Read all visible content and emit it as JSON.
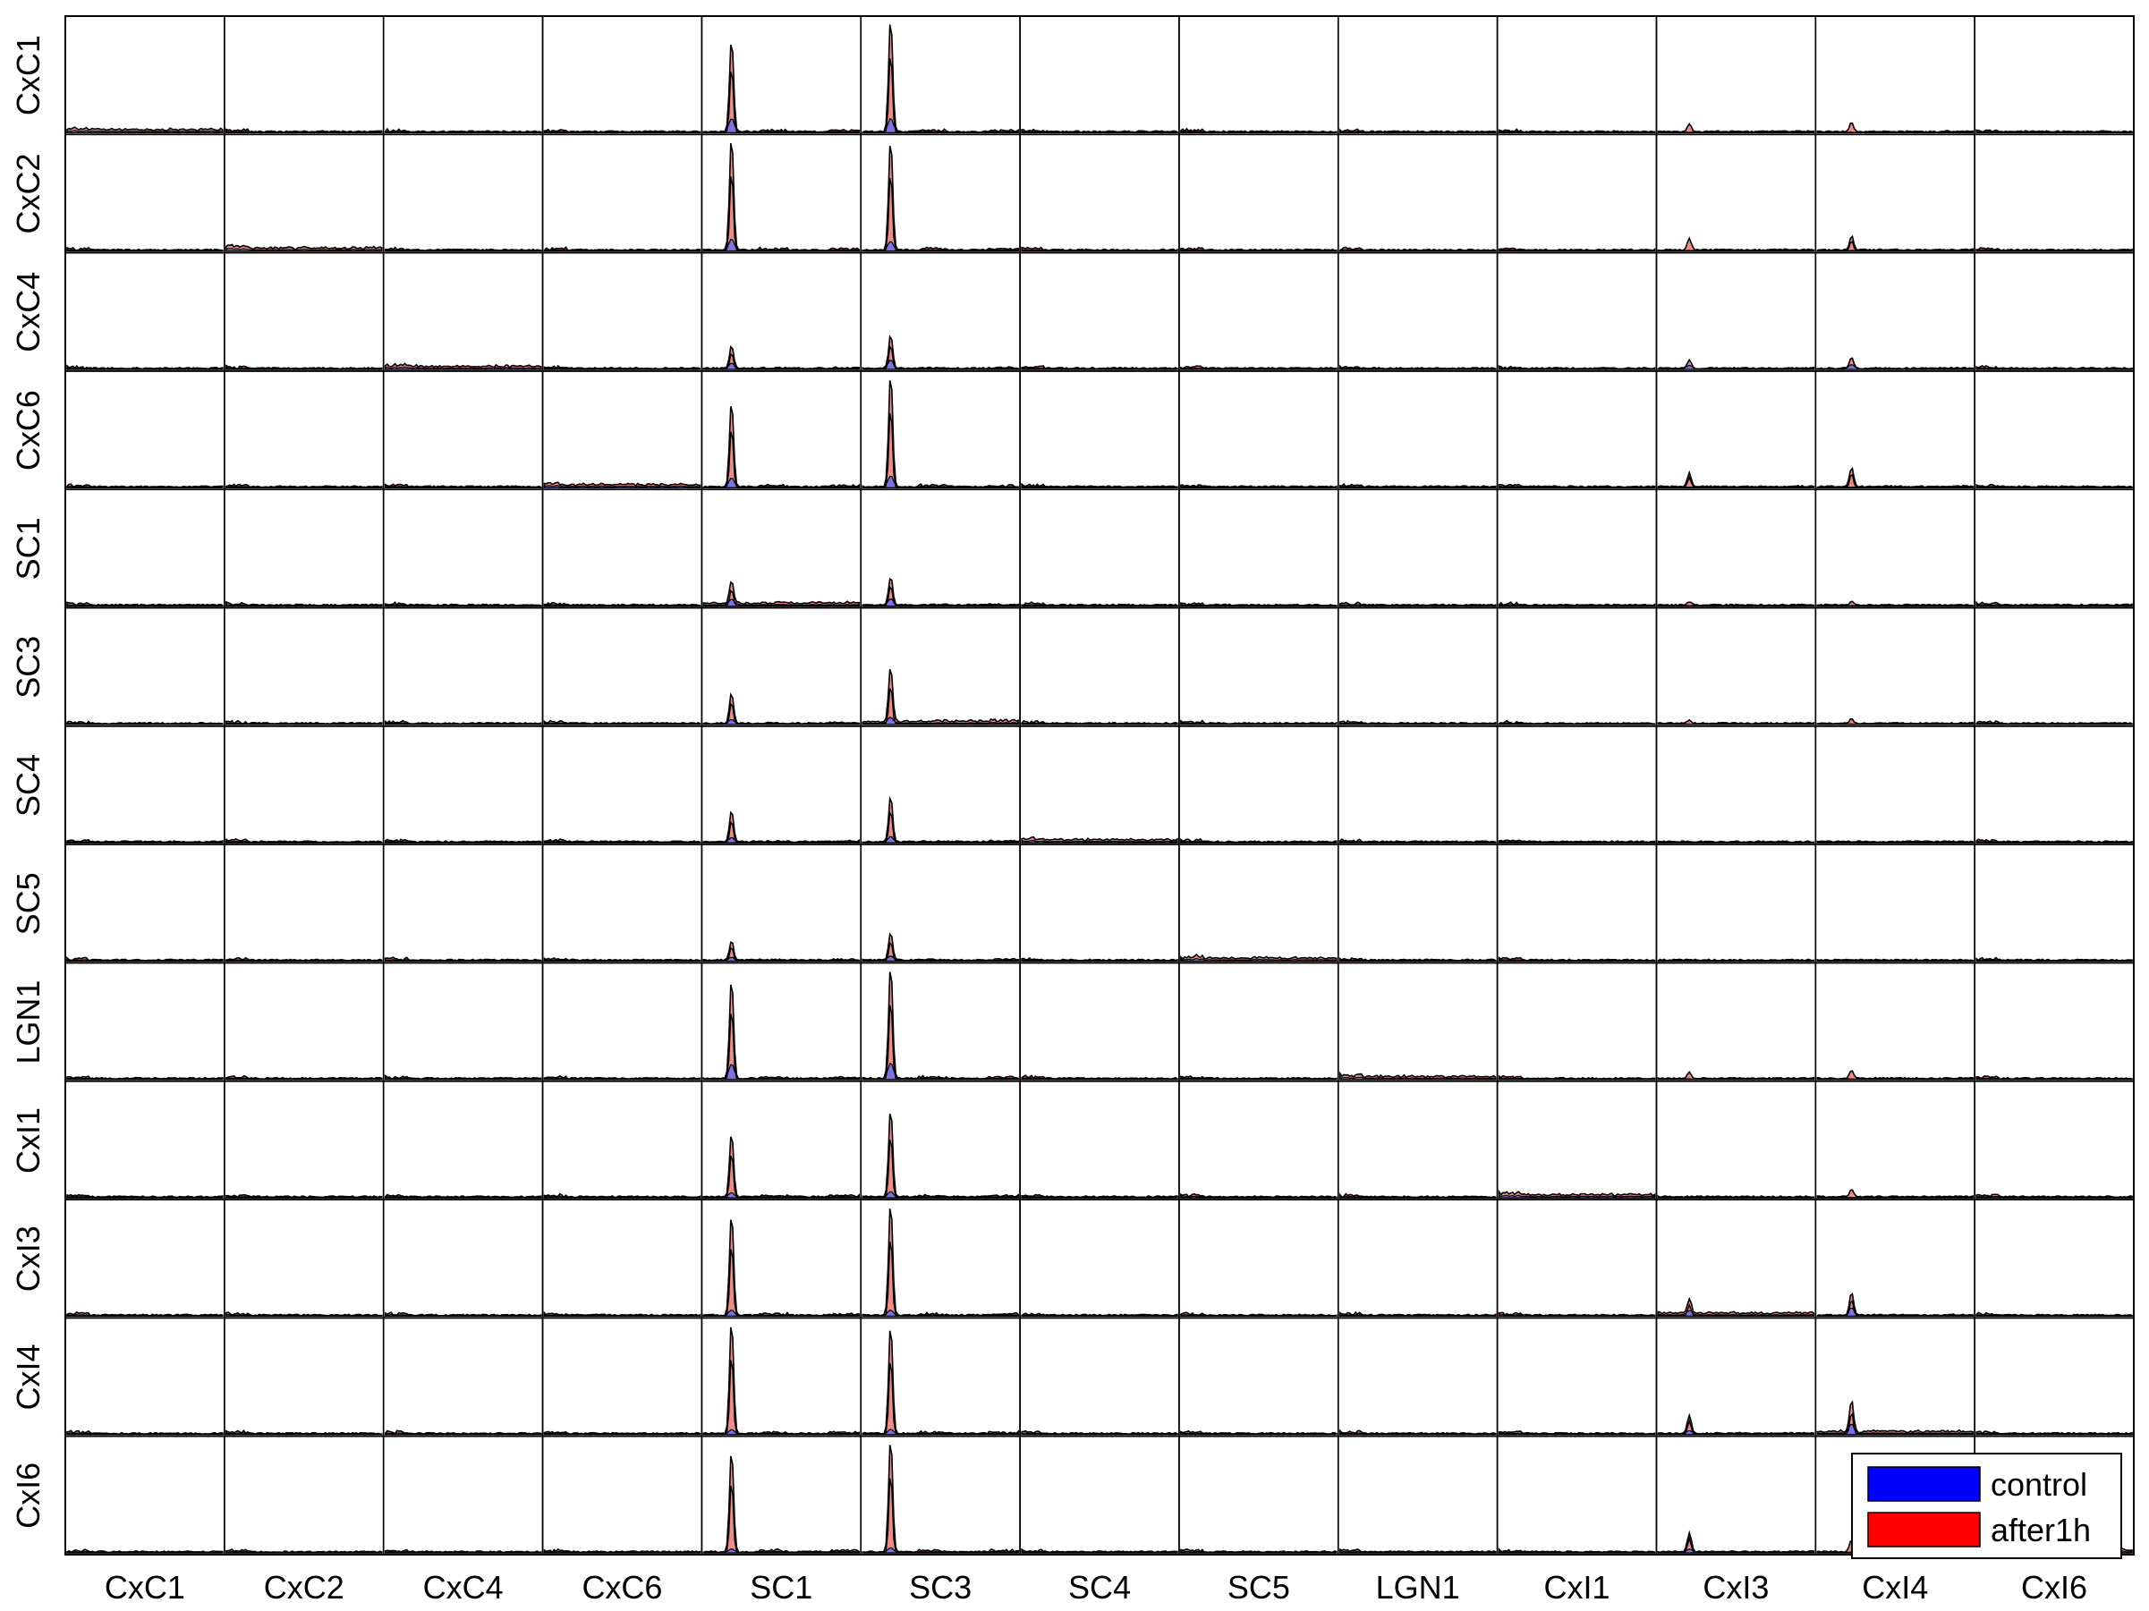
{
  "chart_data": {
    "type": "area",
    "layout": "small-multiples grid",
    "rows": [
      "CxC1",
      "CxC2",
      "CxC4",
      "CxC6",
      "SC1",
      "SC3",
      "SC4",
      "SC5",
      "LGN1",
      "CxI1",
      "CxI3",
      "CxI4",
      "CxI6"
    ],
    "cols": [
      "CxC1",
      "CxC2",
      "CxC4",
      "CxC6",
      "SC1",
      "SC3",
      "SC4",
      "SC5",
      "LGN1",
      "CxI1",
      "CxI3",
      "CxI4",
      "CxI6"
    ],
    "xlim": [
      0,
      1
    ],
    "ylim": [
      0,
      1
    ],
    "grid": false,
    "legend": {
      "position": "bottom-right",
      "entries": [
        {
          "label": "control",
          "color": "#0000ff"
        },
        {
          "label": "after1h",
          "color": "#ff0000"
        }
      ]
    },
    "series": [
      {
        "name": "control",
        "fill": "#6f6fee",
        "line": "#000000"
      },
      {
        "name": "after1h",
        "fill": "#f08a84",
        "line": "#000000"
      }
    ],
    "peak_position": {
      "SC1": 0.18,
      "SC3": 0.18,
      "CxI3": 0.2,
      "CxI4": 0.22
    },
    "peaks": {
      "CxC1": {
        "SC1": [
          0.82,
          0.12
        ],
        "SC3": [
          1.0,
          0.12
        ],
        "CxI3": [
          0.07,
          0.0
        ],
        "CxI4": [
          0.08,
          0.0
        ]
      },
      "CxC2": {
        "SC1": [
          1.0,
          0.1
        ],
        "SC3": [
          0.98,
          0.08
        ],
        "CxI3": [
          0.1,
          0.0
        ],
        "CxI4": [
          0.12,
          0.0
        ]
      },
      "CxC4": {
        "SC1": [
          0.2,
          0.05
        ],
        "SC3": [
          0.3,
          0.08
        ],
        "CxI3": [
          0.07,
          0.03
        ],
        "CxI4": [
          0.1,
          0.04
        ]
      },
      "CxC6": {
        "SC1": [
          0.75,
          0.08
        ],
        "SC3": [
          1.0,
          0.1
        ],
        "CxI3": [
          0.12,
          0.0
        ],
        "CxI4": [
          0.17,
          0.0
        ]
      },
      "SC1": {
        "SC1": [
          0.2,
          0.05
        ],
        "SC3": [
          0.25,
          0.06
        ],
        "CxI3": [
          0.03,
          0.0
        ],
        "CxI4": [
          0.03,
          0.0
        ]
      },
      "SC3": {
        "SC1": [
          0.27,
          0.04
        ],
        "SC3": [
          0.48,
          0.05
        ],
        "CxI3": [
          0.03,
          0.0
        ],
        "CxI4": [
          0.04,
          0.0
        ]
      },
      "SC4": {
        "SC1": [
          0.27,
          0.04
        ],
        "SC3": [
          0.4,
          0.05
        ],
        "CxI3": [
          0.0,
          0.0
        ],
        "CxI4": [
          0.0,
          0.0
        ]
      },
      "SC5": {
        "SC1": [
          0.17,
          0.03
        ],
        "SC3": [
          0.24,
          0.04
        ],
        "CxI3": [
          0.0,
          0.0
        ],
        "CxI4": [
          0.0,
          0.0
        ]
      },
      "LGN1": {
        "SC1": [
          0.88,
          0.13
        ],
        "SC3": [
          1.0,
          0.14
        ],
        "CxI3": [
          0.05,
          0.0
        ],
        "CxI4": [
          0.07,
          0.0
        ]
      },
      "CxI1": {
        "SC1": [
          0.56,
          0.04
        ],
        "SC3": [
          0.78,
          0.05
        ],
        "CxI3": [
          0.0,
          0.0
        ],
        "CxI4": [
          0.07,
          0.0
        ]
      },
      "CxI3": {
        "SC1": [
          0.9,
          0.05
        ],
        "SC3": [
          1.0,
          0.05
        ],
        "CxI3": [
          0.13,
          0.04
        ],
        "CxI4": [
          0.2,
          0.07
        ]
      },
      "CxI4": {
        "SC1": [
          1.0,
          0.04
        ],
        "SC3": [
          0.96,
          0.04
        ],
        "CxI3": [
          0.16,
          0.03
        ],
        "CxI4": [
          0.27,
          0.08
        ]
      },
      "CxI6": {
        "SC1": [
          0.9,
          0.03
        ],
        "SC3": [
          1.0,
          0.04
        ],
        "CxI3": [
          0.17,
          0.03
        ],
        "CxI4": [
          0.1,
          0.0
        ]
      }
    }
  }
}
